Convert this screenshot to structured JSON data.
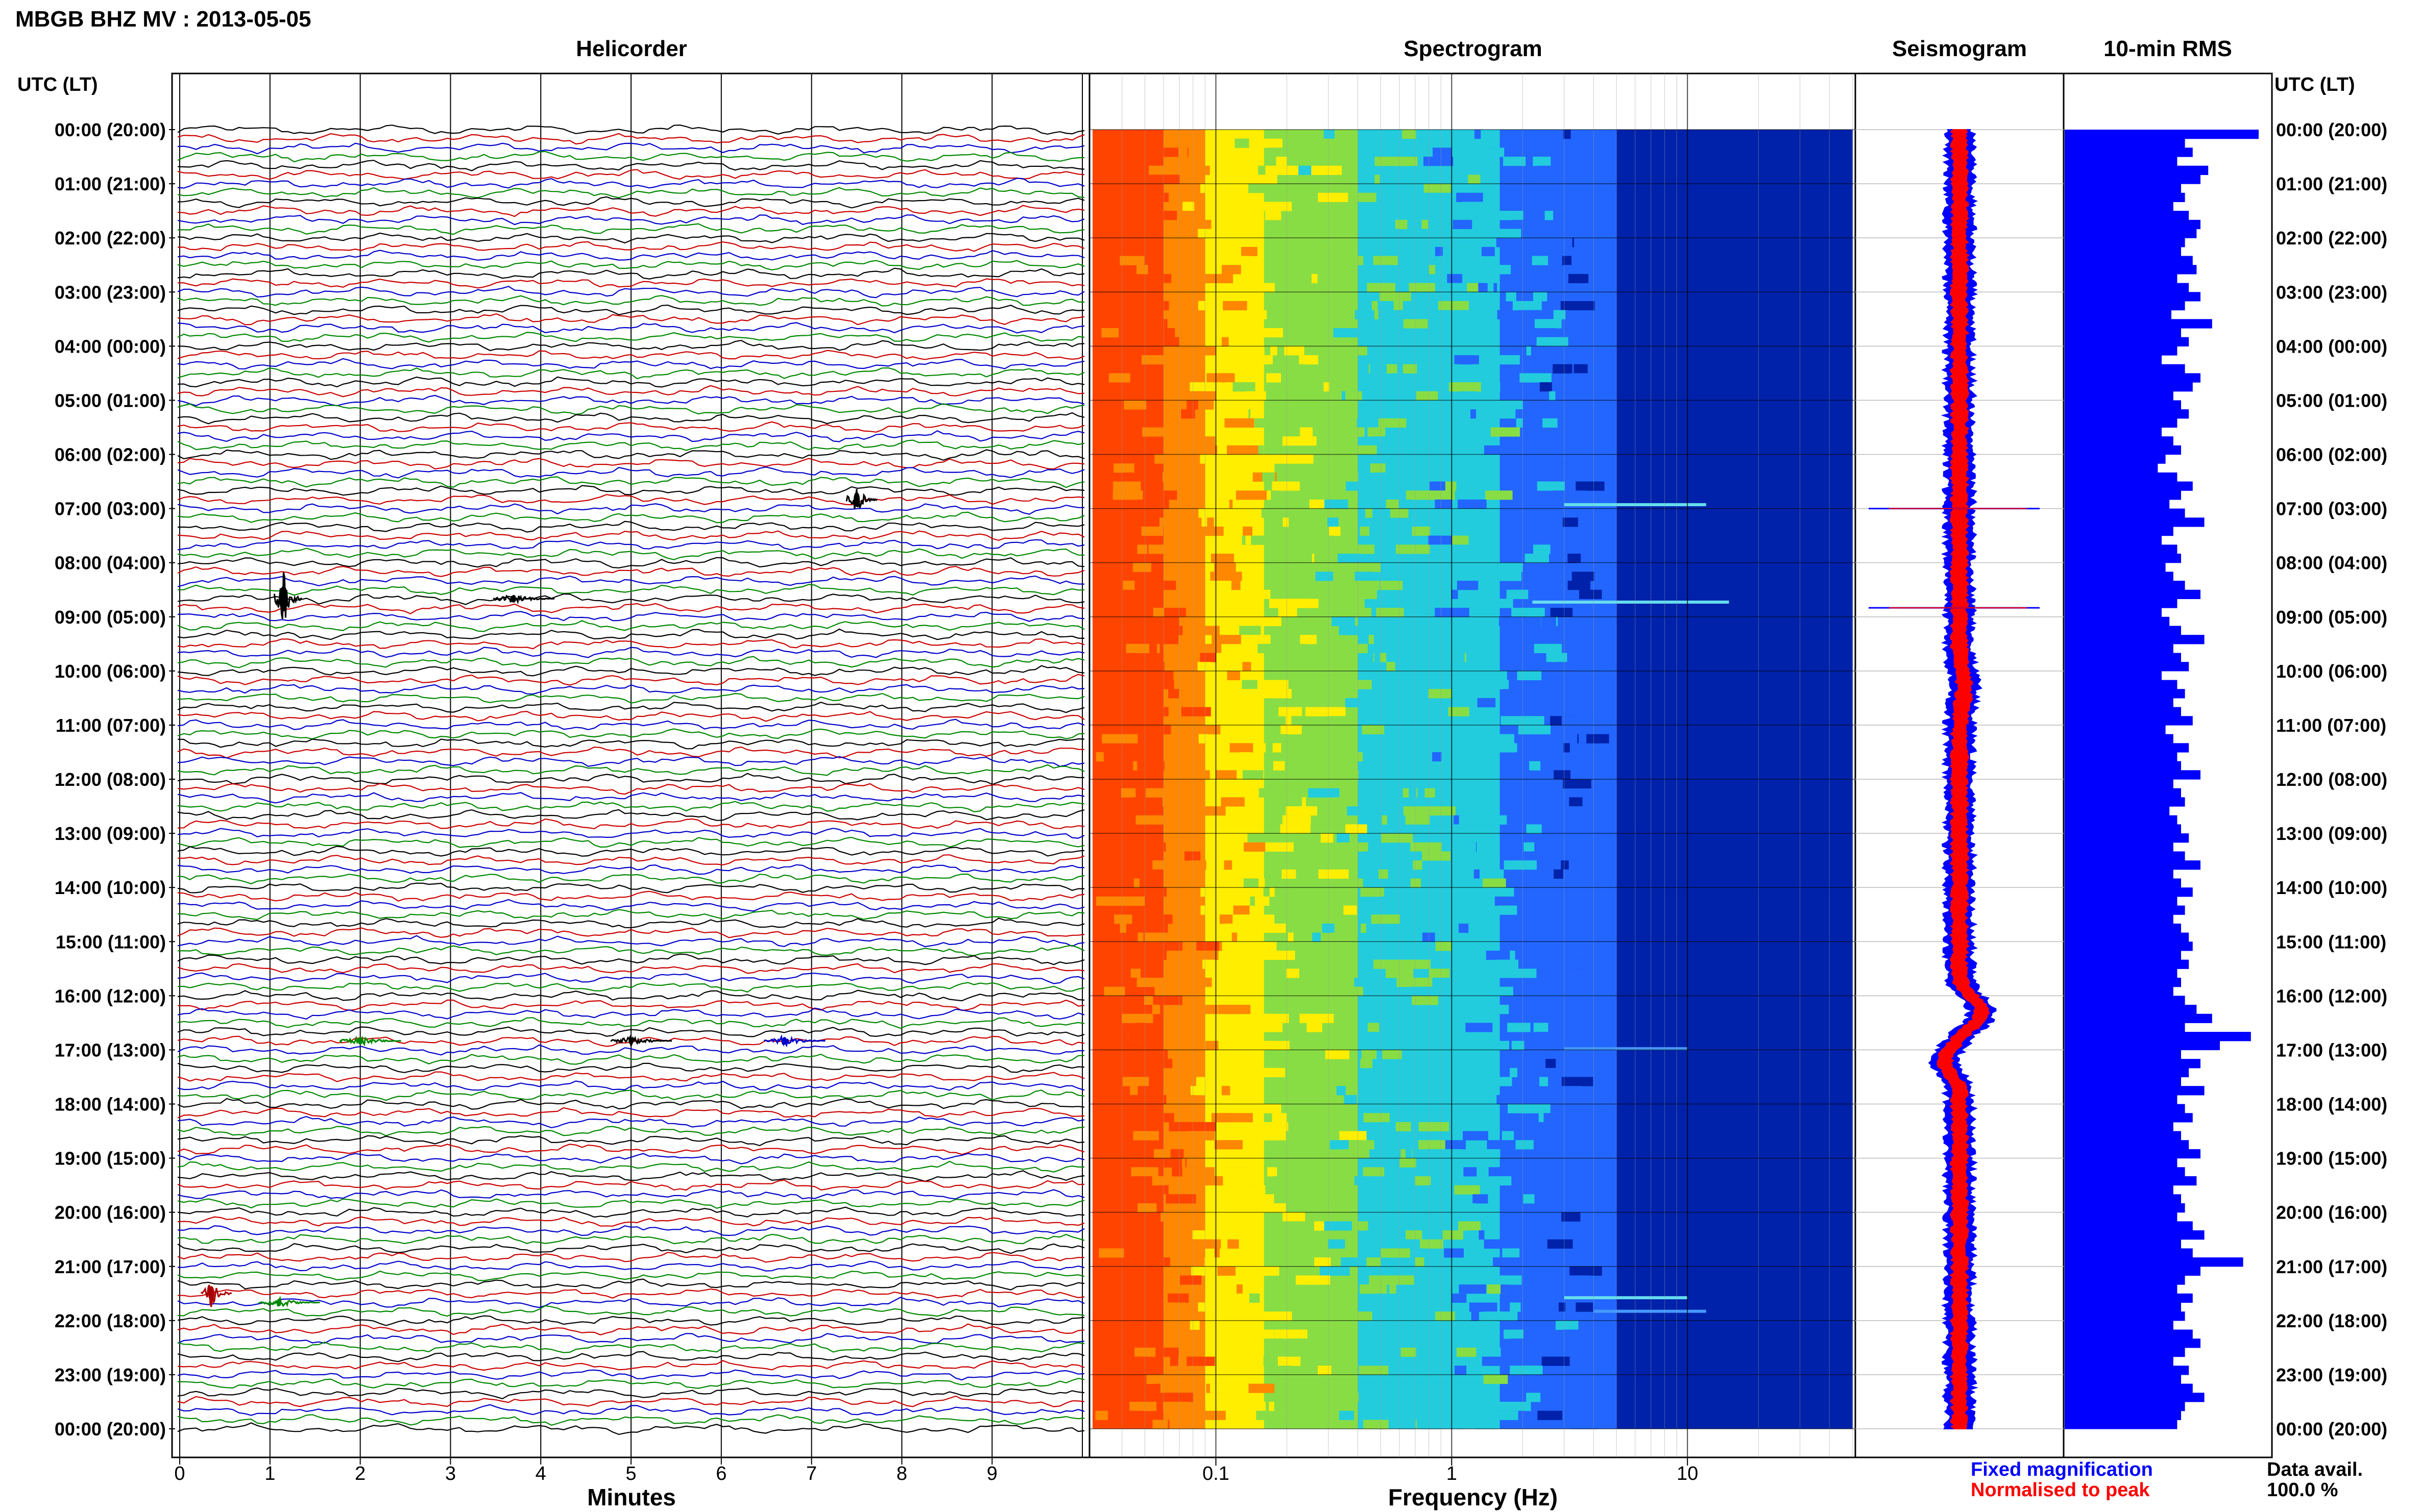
{
  "header": {
    "station_title": "MBGB BHZ MV : 2013-05-05",
    "utc_lt_left": "UTC (LT)",
    "utc_lt_right": "UTC (LT)"
  },
  "panels": {
    "helicorder": "Helicorder",
    "spectrogram": "Spectrogram",
    "seismogram": "Seismogram",
    "rms": "10-min RMS"
  },
  "axes": {
    "minutes_label": "Minutes",
    "frequency_label": "Frequency (Hz)",
    "minute_ticks": [
      "0",
      "1",
      "2",
      "3",
      "4",
      "5",
      "6",
      "7",
      "8",
      "9"
    ],
    "frequency_ticks": [
      "0.1",
      "1",
      "10"
    ]
  },
  "time_labels": [
    "00:00 (20:00)",
    "01:00 (21:00)",
    "02:00 (22:00)",
    "03:00 (23:00)",
    "04:00 (00:00)",
    "05:00 (01:00)",
    "06:00 (02:00)",
    "07:00 (03:00)",
    "08:00 (04:00)",
    "09:00 (05:00)",
    "10:00 (06:00)",
    "11:00 (07:00)",
    "12:00 (08:00)",
    "13:00 (09:00)",
    "14:00 (10:00)",
    "15:00 (11:00)",
    "16:00 (12:00)",
    "17:00 (13:00)",
    "18:00 (14:00)",
    "19:00 (15:00)",
    "20:00 (16:00)",
    "21:00 (17:00)",
    "22:00 (18:00)",
    "23:00 (19:00)",
    "00:00 (20:00)"
  ],
  "legend": {
    "fixed_magnification": "Fixed magnification",
    "normalised_to_peak": "Normalised to peak",
    "data_avail_label": "Data avail.",
    "data_avail_value": "100.0 %"
  },
  "colors": {
    "trace_cycle": [
      "#000000",
      "#cc0000",
      "#0000cc",
      "#008800"
    ],
    "rms_bar": "#0000ff",
    "seismo_fixed": "#0000ff",
    "seismo_norm": "#ff0000",
    "grid": "#000000"
  },
  "chart_data": [
    {
      "type": "line",
      "title": "Helicorder",
      "xlabel": "Minutes",
      "xlim": [
        0,
        10
      ],
      "rows": 144,
      "row_minutes": 10,
      "events": [
        {
          "time_utc": "08:40",
          "minute": 1.15,
          "color": "black",
          "size": "large"
        },
        {
          "time_utc": "06:50",
          "minute": 7.5,
          "color": "black",
          "size": "medium"
        },
        {
          "time_utc": "08:40",
          "minute": 3.7,
          "color": "black",
          "size": "small"
        },
        {
          "time_utc": "16:50",
          "minute": 2.0,
          "color": "green",
          "size": "small"
        },
        {
          "time_utc": "16:50",
          "minute": 6.7,
          "color": "blue",
          "size": "small"
        },
        {
          "time_utc": "16:50",
          "minute": 5.0,
          "color": "black",
          "size": "small"
        },
        {
          "time_utc": "21:30",
          "minute": 0.35,
          "color": "red",
          "size": "medium"
        },
        {
          "time_utc": "21:40",
          "minute": 1.1,
          "color": "green",
          "size": "small"
        }
      ]
    },
    {
      "type": "heatmap",
      "title": "Spectrogram",
      "xlabel": "Frequency (Hz)",
      "xscale": "log",
      "xlim": [
        0.03,
        50
      ],
      "colormap": [
        "#ff4400",
        "#ff8800",
        "#ffee00",
        "#88dd44",
        "#22ccdd",
        "#2266ff",
        "#0022aa"
      ],
      "notes": "High power below 0.2 Hz, decreasing toward 2-3 Hz, low power above 3 Hz"
    },
    {
      "type": "line",
      "title": "Seismogram",
      "series": [
        {
          "name": "Fixed magnification"
        },
        {
          "name": "Normalised to peak"
        }
      ],
      "features": [
        {
          "time_utc": "07:00",
          "kind": "spike"
        },
        {
          "time_utc": "08:50",
          "kind": "spike"
        },
        {
          "time_utc": "16:20",
          "kind": "excursion-right"
        },
        {
          "time_utc": "17:00",
          "kind": "excursion-left"
        }
      ]
    },
    {
      "type": "bar",
      "title": "10-min RMS",
      "orientation": "horizontal",
      "bins": 144,
      "relative_scale": [
        0,
        1
      ],
      "values": [
        1.0,
        0.62,
        0.66,
        0.58,
        0.74,
        0.7,
        0.6,
        0.62,
        0.56,
        0.64,
        0.7,
        0.68,
        0.62,
        0.6,
        0.66,
        0.68,
        0.58,
        0.64,
        0.7,
        0.62,
        0.55,
        0.76,
        0.6,
        0.64,
        0.58,
        0.5,
        0.62,
        0.7,
        0.66,
        0.56,
        0.6,
        0.64,
        0.58,
        0.5,
        0.56,
        0.6,
        0.52,
        0.48,
        0.58,
        0.66,
        0.6,
        0.54,
        0.62,
        0.72,
        0.56,
        0.5,
        0.58,
        0.6,
        0.52,
        0.56,
        0.62,
        0.7,
        0.58,
        0.5,
        0.54,
        0.6,
        0.72,
        0.56,
        0.6,
        0.64,
        0.5,
        0.58,
        0.62,
        0.56,
        0.6,
        0.66,
        0.52,
        0.56,
        0.64,
        0.58,
        0.6,
        0.7,
        0.56,
        0.6,
        0.62,
        0.54,
        0.58,
        0.6,
        0.64,
        0.56,
        0.62,
        0.7,
        0.56,
        0.6,
        0.66,
        0.58,
        0.62,
        0.56,
        0.6,
        0.64,
        0.66,
        0.6,
        0.64,
        0.58,
        0.6,
        0.56,
        0.62,
        0.68,
        0.76,
        0.62,
        0.96,
        0.8,
        0.6,
        0.7,
        0.64,
        0.6,
        0.72,
        0.58,
        0.62,
        0.66,
        0.56,
        0.6,
        0.64,
        0.7,
        0.58,
        0.62,
        0.68,
        0.56,
        0.6,
        0.62,
        0.58,
        0.66,
        0.72,
        0.6,
        0.66,
        0.92,
        0.7,
        0.62,
        0.58,
        0.66,
        0.6,
        0.62,
        0.56,
        0.66,
        0.7,
        0.62,
        0.56,
        0.64,
        0.6,
        0.66,
        0.72,
        0.62,
        0.6,
        0.58
      ]
    }
  ]
}
